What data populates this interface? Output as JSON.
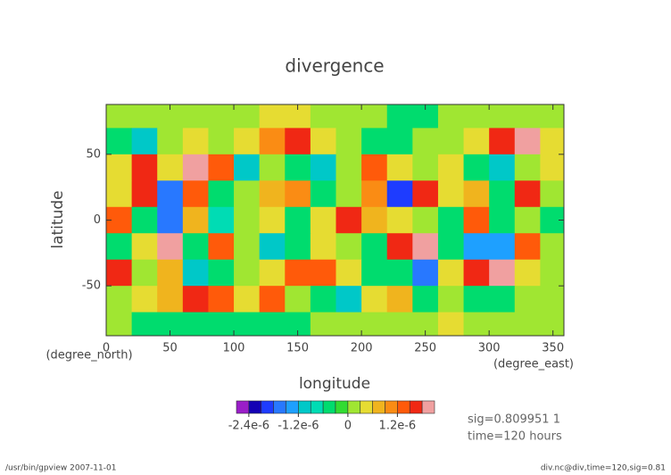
{
  "chart_data": {
    "type": "contour",
    "title": "divergence",
    "xlabel": "longitude",
    "xunit": "(degree_east)",
    "ylabel": "latitude",
    "yunit": "(degree_north)",
    "xlim": [
      0,
      358.6
    ],
    "ylim": [
      -87.9,
      87.9
    ],
    "xticks": [
      0,
      50,
      100,
      150,
      200,
      250,
      300,
      350
    ],
    "yticks": [
      -50,
      0,
      50
    ],
    "x": [
      10,
      30,
      50,
      70,
      90,
      110,
      130,
      150,
      170,
      190,
      210,
      230,
      250,
      270,
      290,
      310,
      330,
      350
    ],
    "y": [
      80,
      60,
      40,
      20,
      0,
      -20,
      -40,
      -60,
      -80
    ],
    "z": [
      [
        1e-07,
        1e-07,
        1e-07,
        1e-07,
        1e-07,
        1e-07,
        4e-07,
        4e-07,
        1e-07,
        1e-07,
        1e-07,
        -4e-07,
        -4e-07,
        1e-07,
        1e-07,
        1e-07,
        1e-07,
        1e-07
      ],
      [
        -4e-07,
        -1e-06,
        1e-07,
        5e-07,
        1e-07,
        4e-07,
        1e-06,
        1.5e-06,
        4e-07,
        1e-07,
        -4e-07,
        -4e-07,
        1e-07,
        1e-07,
        4e-07,
        1.5e-06,
        1.8e-06,
        4e-07
      ],
      [
        4e-07,
        1.5e-06,
        4e-07,
        1.8e-06,
        1.2e-06,
        -1e-06,
        1e-07,
        -6e-07,
        -1.2e-06,
        1e-07,
        1.2e-06,
        4e-07,
        1e-07,
        4e-07,
        -6e-07,
        -1e-06,
        1e-07,
        4e-07
      ],
      [
        4e-07,
        1.5e-06,
        -1.8e-06,
        1.2e-06,
        -6e-07,
        1e-07,
        6e-07,
        1e-06,
        -4e-07,
        1e-07,
        1e-06,
        -2e-06,
        1.5e-06,
        4e-07,
        8e-07,
        -6e-07,
        1.5e-06,
        1e-07
      ],
      [
        1.2e-06,
        -6e-07,
        -1.8e-06,
        6e-07,
        -9e-07,
        1e-07,
        4e-07,
        -6e-07,
        4e-07,
        1.5e-06,
        6e-07,
        4e-07,
        1e-07,
        -6e-07,
        1.2e-06,
        -6e-07,
        1e-07,
        -6e-07
      ],
      [
        -6e-07,
        4e-07,
        1.8e-06,
        -6e-07,
        1.2e-06,
        1e-07,
        -1e-06,
        -6e-07,
        4e-07,
        1e-07,
        -6e-07,
        1.5e-06,
        1.8e-06,
        -6e-07,
        -1.5e-06,
        -1.5e-06,
        1.2e-06,
        1e-07
      ],
      [
        1.5e-06,
        1e-07,
        6e-07,
        -1e-06,
        -6e-07,
        1e-07,
        4e-07,
        1.2e-06,
        1.2e-06,
        4e-07,
        -4e-07,
        -6e-07,
        -1.8e-06,
        4e-07,
        1.5e-06,
        2e-06,
        4e-07,
        1e-07
      ],
      [
        1e-07,
        4e-07,
        6e-07,
        1.5e-06,
        1.2e-06,
        4e-07,
        1.2e-06,
        1e-07,
        -6e-07,
        -1e-06,
        4e-07,
        6e-07,
        -6e-07,
        1e-07,
        -4e-07,
        -6e-07,
        1e-07,
        1e-07
      ],
      [
        1e-07,
        -4e-07,
        -4e-07,
        -4e-07,
        -6e-07,
        -4e-07,
        -4e-07,
        -4e-07,
        1e-07,
        1e-07,
        1e-07,
        1e-07,
        1e-07,
        4e-07,
        1e-07,
        1e-07,
        1e-07,
        1e-07
      ]
    ],
    "colorbar": {
      "levels": [
        -2.7e-06,
        -2.4e-06,
        -2.1e-06,
        -1.8e-06,
        -1.5e-06,
        -1.2e-06,
        -9e-07,
        -6e-07,
        -3e-07,
        0,
        3e-07,
        6e-07,
        9e-07,
        1.2e-06,
        1.5e-06,
        1.8e-06,
        2.1e-06
      ],
      "colors": [
        "#9a1ec8",
        "#1400b4",
        "#1e3cff",
        "#2878ff",
        "#1ea0ff",
        "#00c8c8",
        "#00dcb4",
        "#00dc6e",
        "#32dc32",
        "#a0e632",
        "#e6dc32",
        "#f0b41e",
        "#fa8c14",
        "#ff5a0a",
        "#f02814",
        "#f0a0a0"
      ],
      "ticks": [
        {
          "value": -2.4e-06,
          "label": "-2.4e-6"
        },
        {
          "value": -1.2e-06,
          "label": "-1.2e-6"
        },
        0,
        {
          "value": 1.2e-06,
          "label": "1.2e-6"
        }
      ]
    },
    "notes": [
      "sig=0.809951 1",
      "time=120 hours"
    ],
    "footer_left": "/usr/bin/gpview  2007-11-01",
    "footer_right": "div.nc@div,time=120,sig=0.81"
  }
}
